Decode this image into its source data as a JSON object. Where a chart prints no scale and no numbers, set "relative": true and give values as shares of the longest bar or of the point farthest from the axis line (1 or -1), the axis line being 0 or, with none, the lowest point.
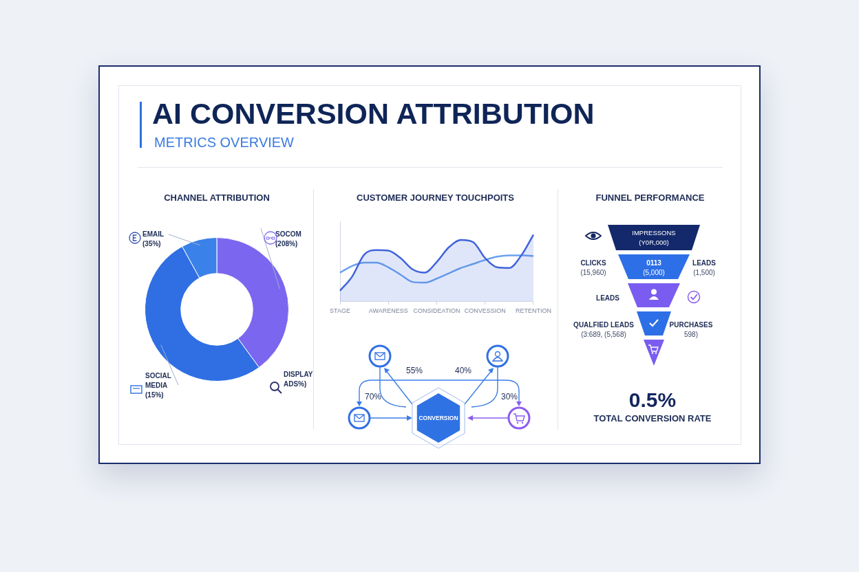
{
  "chart_data": [
    {
      "type": "other",
      "title": "AI CONVERSION ATTRIBUTION",
      "subtitle": "METRICS OVERVIEW"
    },
    {
      "type": "donut",
      "title": "CHANNEL ATTRIBUTION",
      "categories": [
        "SOCOM (208%)",
        "SOCIAL MEDIA (15%)",
        "EMAIL (35%)"
      ],
      "values": [
        40,
        52,
        8
      ],
      "colors": [
        "#7b66ef",
        "#2f6fe3",
        "#3a82ea"
      ],
      "legend": "bottom left",
      "annotations": [
        "DISPLAY ADS%)"
      ]
    },
    {
      "type": "line",
      "title": "CUSTOMER JOURNEY TOUCHPOITS",
      "relative": true,
      "categories": [
        "STAGE",
        null,
        null,
        null,
        "AWARENESS",
        null,
        null,
        null,
        "CONSIDEATION",
        null,
        null,
        null,
        "CONVESSION",
        null,
        null,
        null,
        "RETENTION"
      ],
      "series": [
        {
          "type": "area",
          "color": "#3f63dc",
          "values": [
            0.16,
            0.37,
            0.7,
            0.77,
            0.76,
            0.65,
            0.48,
            0.43,
            0.59,
            0.81,
            0.92,
            0.89,
            0.65,
            0.51,
            0.5,
            0.69,
            1
          ]
        },
        {
          "type": "line",
          "color": "#6aa2ee",
          "values": [
            0.43,
            0.53,
            0.58,
            0.58,
            0.51,
            0.4,
            0.29,
            0.28,
            0.34,
            0.42,
            0.5,
            0.56,
            0.62,
            0.67,
            0.69,
            0.69,
            0.68
          ]
        }
      ]
    },
    {
      "type": "other",
      "annotations": [
        "55%",
        "40%",
        "70%",
        "30%",
        "CONVERSION"
      ]
    },
    {
      "type": "other",
      "title": "FUNNEL PERFORMANCE",
      "annotations": [
        "IMPRESSONS",
        "(Y0R,000)",
        "0113",
        "(5,000)",
        "CLICKS",
        "(15,960)",
        "LEADS",
        "(1,500)",
        "LEADS",
        "QUALFIED LEADS",
        "(3:689, (5,568)",
        "PURCHASES",
        "598)",
        "0.5%",
        "TOTAL CONVERSION RATE"
      ]
    }
  ]
}
